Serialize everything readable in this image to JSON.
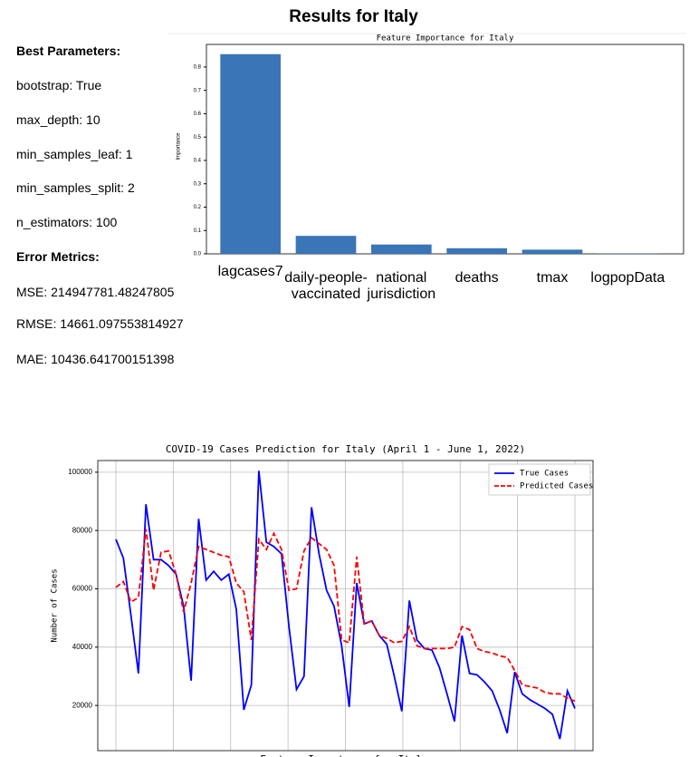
{
  "header": {
    "title": "Results for Italy"
  },
  "parameters": {
    "heading": "Best Parameters:",
    "items": [
      "bootstrap: True",
      "max_depth: 10",
      "min_samples_leaf: 1",
      "min_samples_split: 2",
      "n_estimators: 100"
    ]
  },
  "metrics": {
    "heading": "Error Metrics:",
    "items": [
      "MSE: 214947781.48247805",
      "RMSE: 14661.097553814927",
      "MAE: 10436.641700151398"
    ]
  },
  "chart_data": [
    {
      "type": "bar",
      "title": "Feature Importance for Italy",
      "y_label": "Importance",
      "categories": [
        "lagcases7",
        "daily-people-vaccinated",
        "national jurisdiction",
        "deaths",
        "tmax",
        "logpopData"
      ],
      "values": [
        0.855,
        0.077,
        0.04,
        0.024,
        0.018,
        0.001
      ],
      "color": "#3a75b8",
      "ylim": [
        0,
        0.92
      ],
      "yticks": [
        {
          "value": 0,
          "label": "0.0"
        },
        0.1,
        0.2,
        0.3,
        0.4,
        0.5,
        0.6,
        0.7,
        0.8
      ],
      "grid": false
    },
    {
      "type": "line",
      "title": "COVID-19 Cases Prediction for Italy (April 1 - June 1, 2022)",
      "y_label": "Number of Cases",
      "ylim": [
        4500,
        104000
      ],
      "yticks": [
        20000,
        40000,
        60000,
        80000,
        100000
      ],
      "grid": true,
      "legend": "upper right",
      "series": [
        {
          "name": "True Cases",
          "color": "#0000ff",
          "dashed": false,
          "values": [
            77000,
            70500,
            51000,
            31000,
            89000,
            70000,
            70000,
            68000,
            65000,
            54000,
            28500,
            84000,
            63000,
            66000,
            63000,
            65000,
            53000,
            18500,
            27000,
            100500,
            76000,
            74500,
            72000,
            47000,
            25500,
            30000,
            88000,
            72000,
            59500,
            54000,
            40500,
            19500,
            62000,
            48000,
            49000,
            44000,
            41000,
            30000,
            18000,
            56000,
            42500,
            39500,
            39000,
            33000,
            24000,
            14500,
            44000,
            31000,
            30500,
            28000,
            25000,
            18500,
            10500,
            31500,
            24000,
            22000,
            20500,
            19000,
            17000,
            8500,
            25000,
            19000
          ]
        },
        {
          "name": "Predicted Cases",
          "color": "#ff0000",
          "dashed": true,
          "values": [
            60500,
            62500,
            55500,
            57000,
            80500,
            59500,
            72500,
            73000,
            65000,
            52000,
            62000,
            74500,
            73500,
            72500,
            71500,
            71000,
            62000,
            59000,
            42500,
            77000,
            73500,
            79000,
            73500,
            59500,
            60000,
            73000,
            77500,
            75500,
            73500,
            68000,
            42500,
            41500,
            71000,
            48000,
            49000,
            44000,
            43000,
            41500,
            42000,
            47000,
            40500,
            39500,
            39500,
            39500,
            39500,
            40000,
            47000,
            46000,
            39500,
            38500,
            38000,
            37000,
            36500,
            32000,
            27000,
            26500,
            26000,
            24500,
            24000,
            24000,
            22500,
            21500
          ]
        }
      ]
    }
  ],
  "cropped_title": "Feature Importance for Italy"
}
